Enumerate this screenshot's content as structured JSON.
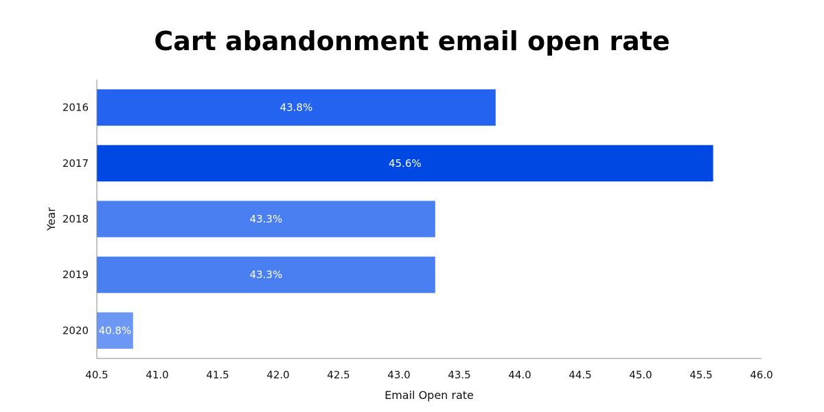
{
  "title": "Cart abandonment email open rate",
  "chart_data": {
    "type": "bar",
    "orientation": "horizontal",
    "title": "Cart abandonment email open rate",
    "xlabel": "Email Open rate",
    "ylabel": "Year",
    "categories": [
      "2016",
      "2017",
      "2018",
      "2019",
      "2020"
    ],
    "values": [
      43.8,
      45.6,
      43.3,
      43.3,
      40.8
    ],
    "data_labels": [
      "43.8%",
      "45.6%",
      "43.3%",
      "43.3%",
      "40.8%"
    ],
    "xlim": [
      40.5,
      46.0
    ],
    "xticks": [
      "40.5",
      "41.0",
      "41.5",
      "42.0",
      "42.5",
      "43.0",
      "43.5",
      "44.0",
      "44.5",
      "45.0",
      "45.5",
      "46.0"
    ],
    "xtick_values": [
      40.5,
      41.0,
      41.5,
      42.0,
      42.5,
      43.0,
      43.5,
      44.0,
      44.5,
      45.0,
      45.5,
      46.0
    ],
    "bar_colors": [
      "#2463f0",
      "#0048e3",
      "#4a7ff2",
      "#4a7ff2",
      "#6d97f4"
    ],
    "grid": false,
    "legend": "none"
  }
}
